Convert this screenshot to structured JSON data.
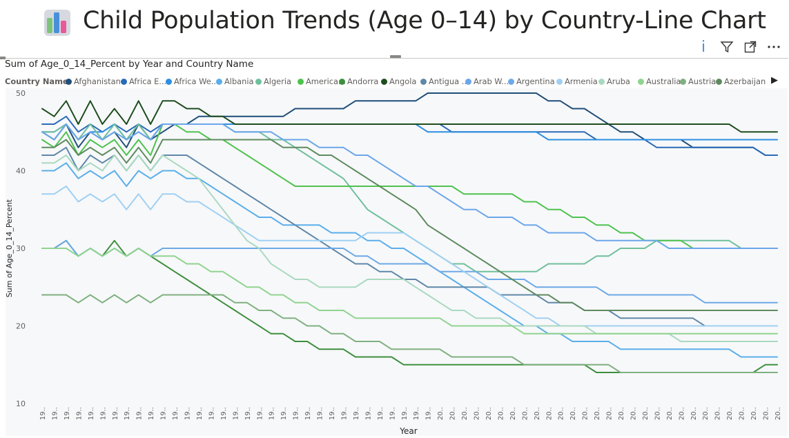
{
  "page": {
    "title": "Child Population Trends (Age 0–14) by Country-Line Chart"
  },
  "toolbar": {
    "info_label": "i"
  },
  "visual": {
    "title": "Sum of Age_0_14_Percent by Year and Country Name"
  },
  "legend": {
    "title": "Country Name",
    "items": [
      {
        "label": "Afghanistan",
        "color": "#1f4e79"
      },
      {
        "label": "Africa E...",
        "color": "#2a6ab8"
      },
      {
        "label": "Africa We...",
        "color": "#2c8ee0"
      },
      {
        "label": "Albania",
        "color": "#5aaeea"
      },
      {
        "label": "Algeria",
        "color": "#6fbf9b"
      },
      {
        "label": "America...",
        "color": "#4ec24e"
      },
      {
        "label": "Andorra",
        "color": "#3d8f3d"
      },
      {
        "label": "Angola",
        "color": "#1e4d1e"
      },
      {
        "label": "Antigua ...",
        "color": "#5f87a8"
      },
      {
        "label": "Arab W...",
        "color": "#6aa6ea"
      },
      {
        "label": "Argentina",
        "color": "#6ca9e6"
      },
      {
        "label": "Armenia",
        "color": "#9fd0f2"
      },
      {
        "label": "Aruba",
        "color": "#a9d9c0"
      },
      {
        "label": "Australia",
        "color": "#8fd48f"
      },
      {
        "label": "Austria",
        "color": "#7fb07f"
      },
      {
        "label": "Azerbaijan",
        "color": "#5e8a5e"
      }
    ]
  },
  "chart_data": {
    "type": "line",
    "title": "Sum of Age_0_14_Percent by Year and Country Name",
    "xlabel": "Year",
    "ylabel": "Sum of Age_0_14_Percent",
    "ylim": [
      10,
      50
    ],
    "yticks": [
      10,
      20,
      30,
      40,
      50
    ],
    "x": [
      "19..",
      "19..",
      "19..",
      "19..",
      "19..",
      "19..",
      "19..",
      "19..",
      "19..",
      "19..",
      "19..",
      "19..",
      "19..",
      "19..",
      "19..",
      "19..",
      "19..",
      "19..",
      "19..",
      "19..",
      "19..",
      "19..",
      "19..",
      "19..",
      "19..",
      "19..",
      "19..",
      "19..",
      "19..",
      "19..",
      "19..",
      "19..",
      "19..",
      "20..",
      "20..",
      "20..",
      "20..",
      "20..",
      "20..",
      "20..",
      "20..",
      "20..",
      "20..",
      "20..",
      "20..",
      "20..",
      "20..",
      "20..",
      "20..",
      "20..",
      "20..",
      "20..",
      "20..",
      "20..",
      "20..",
      "20..",
      "20..",
      "20..",
      "20..",
      "20..",
      "20..",
      "20.."
    ],
    "grid": false,
    "legend_position": "top-left",
    "series": [
      {
        "name": "Afghanistan",
        "color": "#1f4e79",
        "values": [
          45,
          44,
          46,
          43,
          45,
          44,
          45,
          43,
          46,
          44,
          45,
          46,
          46,
          47,
          47,
          47,
          47,
          47,
          47,
          47,
          47,
          48,
          48,
          48,
          48,
          48,
          49,
          49,
          49,
          49,
          49,
          49,
          50,
          50,
          50,
          50,
          50,
          50,
          50,
          50,
          50,
          50,
          49,
          49,
          48,
          48,
          47,
          46,
          45,
          45,
          44,
          44,
          44,
          44,
          43,
          43,
          43,
          43,
          43,
          43,
          42,
          42
        ]
      },
      {
        "name": "Africa E...",
        "color": "#2a6ab8",
        "values": [
          46,
          46,
          47,
          45,
          46,
          45,
          46,
          45,
          46,
          45,
          46,
          46,
          46,
          46,
          46,
          46,
          46,
          46,
          46,
          46,
          46,
          46,
          46,
          46,
          46,
          46,
          46,
          46,
          46,
          46,
          46,
          46,
          46,
          46,
          45,
          45,
          45,
          45,
          45,
          45,
          45,
          45,
          45,
          45,
          45,
          45,
          44,
          44,
          44,
          44,
          44,
          43,
          43,
          43,
          43,
          43,
          43,
          43,
          43,
          43,
          42,
          42
        ]
      },
      {
        "name": "Africa We...",
        "color": "#2c8ee0",
        "values": [
          45,
          45,
          46,
          44,
          45,
          45,
          46,
          44,
          45,
          44,
          46,
          46,
          46,
          46,
          46,
          46,
          46,
          46,
          46,
          46,
          46,
          46,
          46,
          46,
          46,
          46,
          46,
          46,
          46,
          46,
          46,
          46,
          45,
          45,
          45,
          45,
          45,
          45,
          45,
          45,
          45,
          45,
          44,
          44,
          44,
          44,
          44,
          44,
          44,
          44,
          44,
          44,
          44,
          44,
          44,
          44,
          44,
          44,
          44,
          44,
          44,
          44
        ]
      },
      {
        "name": "Albania",
        "color": "#5aaeea",
        "values": [
          40,
          40,
          41,
          39,
          40,
          39,
          40,
          38,
          40,
          39,
          40,
          40,
          39,
          39,
          38,
          37,
          36,
          35,
          34,
          34,
          33,
          33,
          33,
          33,
          32,
          32,
          32,
          31,
          31,
          30,
          30,
          29,
          28,
          27,
          26,
          25,
          24,
          23,
          22,
          21,
          20,
          20,
          19,
          19,
          18,
          18,
          18,
          18,
          17,
          17,
          17,
          17,
          17,
          17,
          17,
          17,
          17,
          17,
          16,
          16,
          16,
          16
        ]
      },
      {
        "name": "Algeria",
        "color": "#6fbf9b",
        "values": [
          45,
          45,
          46,
          44,
          46,
          44,
          46,
          44,
          46,
          44,
          46,
          46,
          46,
          46,
          46,
          46,
          45,
          45,
          45,
          44,
          44,
          43,
          42,
          41,
          40,
          39,
          37,
          35,
          34,
          33,
          32,
          31,
          30,
          29,
          28,
          28,
          27,
          27,
          27,
          27,
          27,
          27,
          28,
          28,
          28,
          28,
          29,
          29,
          30,
          30,
          30,
          31,
          31,
          31,
          31,
          31,
          31,
          31,
          30,
          30,
          30,
          30
        ]
      },
      {
        "name": "America...",
        "color": "#4ec24e",
        "values": [
          44,
          43,
          45,
          42,
          44,
          43,
          44,
          42,
          44,
          42,
          46,
          46,
          45,
          45,
          44,
          44,
          43,
          42,
          41,
          40,
          39,
          38,
          38,
          38,
          38,
          38,
          38,
          38,
          38,
          38,
          38,
          38,
          38,
          38,
          38,
          37,
          37,
          37,
          37,
          37,
          36,
          36,
          35,
          35,
          34,
          34,
          33,
          33,
          32,
          32,
          31,
          31,
          31,
          31,
          30,
          30,
          30,
          30,
          30,
          30,
          30,
          30
        ]
      },
      {
        "name": "Andorra",
        "color": "#3d8f3d",
        "values": [
          30,
          30,
          31,
          29,
          30,
          29,
          31,
          29,
          30,
          29,
          28,
          27,
          26,
          25,
          24,
          23,
          22,
          21,
          20,
          19,
          19,
          18,
          18,
          17,
          17,
          17,
          16,
          16,
          16,
          16,
          15,
          15,
          15,
          15,
          15,
          15,
          15,
          15,
          15,
          15,
          15,
          15,
          15,
          15,
          15,
          15,
          14,
          14,
          14,
          14,
          14,
          14,
          14,
          14,
          14,
          14,
          14,
          14,
          14,
          14,
          15,
          15
        ]
      },
      {
        "name": "Angola",
        "color": "#1e4d1e",
        "values": [
          48,
          47,
          49,
          46,
          49,
          46,
          48,
          46,
          49,
          46,
          49,
          49,
          48,
          48,
          47,
          47,
          46,
          46,
          46,
          46,
          46,
          46,
          46,
          46,
          46,
          46,
          46,
          46,
          46,
          46,
          46,
          46,
          46,
          46,
          46,
          46,
          46,
          46,
          46,
          46,
          46,
          46,
          46,
          46,
          46,
          46,
          46,
          46,
          46,
          46,
          46,
          46,
          46,
          46,
          46,
          46,
          46,
          46,
          45,
          45,
          45,
          45
        ]
      },
      {
        "name": "Antigua ...",
        "color": "#5f87a8",
        "values": [
          42,
          42,
          43,
          40,
          42,
          41,
          42,
          40,
          42,
          40,
          42,
          42,
          42,
          41,
          40,
          39,
          38,
          37,
          36,
          35,
          34,
          33,
          32,
          31,
          30,
          29,
          28,
          28,
          27,
          27,
          26,
          26,
          25,
          25,
          25,
          25,
          25,
          25,
          24,
          24,
          24,
          24,
          23,
          23,
          23,
          22,
          22,
          22,
          21,
          21,
          21,
          21,
          21,
          21,
          21,
          20,
          20,
          20,
          20,
          20,
          20,
          20
        ]
      },
      {
        "name": "Arab W...",
        "color": "#6aa6ea",
        "values": [
          45,
          44,
          46,
          44,
          45,
          44,
          45,
          44,
          45,
          44,
          46,
          46,
          46,
          46,
          46,
          46,
          45,
          45,
          45,
          45,
          44,
          44,
          44,
          43,
          43,
          43,
          42,
          42,
          41,
          40,
          39,
          38,
          38,
          37,
          36,
          35,
          35,
          34,
          34,
          34,
          33,
          33,
          32,
          32,
          32,
          32,
          31,
          31,
          31,
          31,
          31,
          31,
          30,
          30,
          30,
          30,
          30,
          30,
          30,
          30,
          30,
          30
        ]
      },
      {
        "name": "Argentina",
        "color": "#6ca9e6",
        "values": [
          30,
          30,
          31,
          29,
          30,
          29,
          30,
          29,
          30,
          29,
          30,
          30,
          30,
          30,
          30,
          30,
          30,
          30,
          30,
          30,
          30,
          30,
          30,
          30,
          30,
          30,
          29,
          29,
          28,
          28,
          28,
          28,
          28,
          27,
          27,
          27,
          27,
          26,
          26,
          26,
          26,
          25,
          25,
          25,
          25,
          25,
          25,
          24,
          24,
          24,
          24,
          24,
          24,
          24,
          24,
          23,
          23,
          23,
          23,
          23,
          23,
          23
        ]
      },
      {
        "name": "Armenia",
        "color": "#9fd0f2",
        "values": [
          37,
          37,
          38,
          36,
          37,
          36,
          37,
          35,
          37,
          35,
          37,
          37,
          36,
          36,
          35,
          34,
          33,
          32,
          31,
          31,
          31,
          31,
          31,
          31,
          31,
          31,
          31,
          32,
          32,
          32,
          32,
          31,
          30,
          29,
          28,
          27,
          26,
          25,
          24,
          23,
          22,
          21,
          21,
          20,
          20,
          20,
          20,
          20,
          20,
          20,
          20,
          20,
          20,
          20,
          20,
          20,
          20,
          20,
          20,
          20,
          20,
          20
        ]
      },
      {
        "name": "Aruba",
        "color": "#a9d9c0",
        "values": [
          41,
          41,
          42,
          40,
          41,
          40,
          42,
          40,
          42,
          40,
          42,
          41,
          40,
          39,
          37,
          35,
          33,
          31,
          30,
          28,
          27,
          26,
          26,
          25,
          25,
          25,
          25,
          26,
          26,
          26,
          26,
          25,
          24,
          23,
          22,
          22,
          21,
          21,
          21,
          20,
          20,
          20,
          20,
          20,
          20,
          20,
          19,
          19,
          19,
          19,
          19,
          19,
          19,
          18,
          18,
          18,
          18,
          18,
          18,
          18,
          18,
          18
        ]
      },
      {
        "name": "Australia",
        "color": "#8fd48f",
        "values": [
          30,
          30,
          30,
          29,
          30,
          29,
          30,
          29,
          30,
          29,
          29,
          29,
          28,
          28,
          27,
          27,
          26,
          25,
          25,
          24,
          24,
          23,
          23,
          22,
          22,
          22,
          21,
          21,
          21,
          21,
          21,
          21,
          21,
          21,
          20,
          20,
          20,
          20,
          20,
          20,
          19,
          19,
          19,
          19,
          19,
          19,
          19,
          19,
          19,
          19,
          19,
          19,
          19,
          19,
          19,
          19,
          19,
          19,
          19,
          19,
          19,
          19
        ]
      },
      {
        "name": "Austria",
        "color": "#7fb07f",
        "values": [
          24,
          24,
          24,
          23,
          24,
          23,
          24,
          23,
          24,
          23,
          24,
          24,
          24,
          24,
          24,
          24,
          23,
          23,
          22,
          22,
          21,
          21,
          20,
          20,
          19,
          19,
          18,
          18,
          18,
          17,
          17,
          17,
          17,
          17,
          16,
          16,
          16,
          16,
          16,
          16,
          15,
          15,
          15,
          15,
          15,
          15,
          15,
          15,
          14,
          14,
          14,
          14,
          14,
          14,
          14,
          14,
          14,
          14,
          14,
          14,
          14,
          14
        ]
      },
      {
        "name": "Azerbaijan",
        "color": "#5e8a5e",
        "values": [
          43,
          43,
          44,
          42,
          43,
          42,
          43,
          41,
          43,
          41,
          44,
          44,
          44,
          44,
          44,
          44,
          44,
          44,
          44,
          44,
          43,
          43,
          43,
          42,
          42,
          41,
          40,
          39,
          38,
          37,
          36,
          35,
          33,
          32,
          31,
          30,
          29,
          28,
          27,
          26,
          25,
          24,
          24,
          23,
          23,
          22,
          22,
          22,
          22,
          22,
          22,
          22,
          22,
          22,
          22,
          22,
          22,
          22,
          22,
          22,
          22,
          22
        ]
      }
    ]
  }
}
